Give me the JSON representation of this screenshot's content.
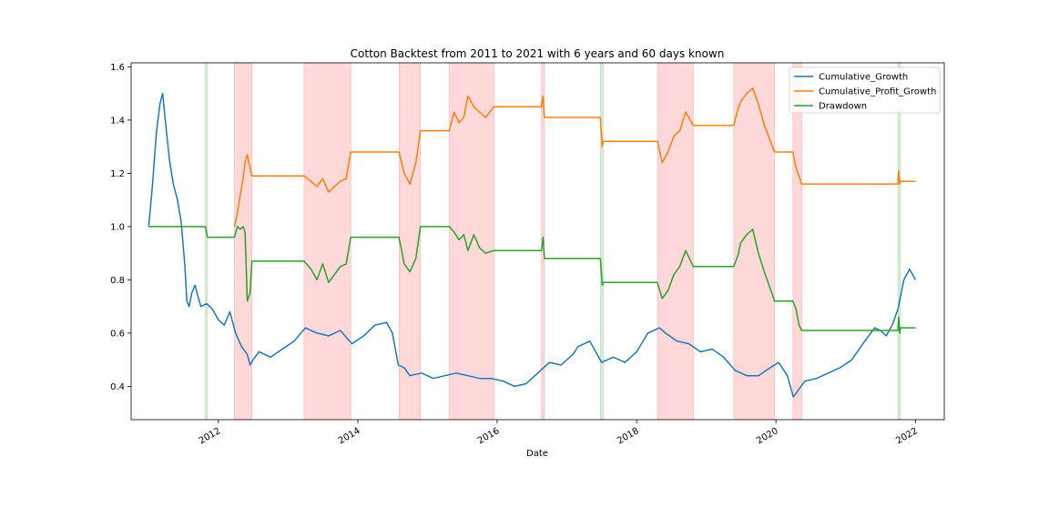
{
  "chart_data": {
    "type": "line",
    "title": "Cotton Backtest from 2011 to 2021 with 6 years and 60 days known",
    "xlabel": "Date",
    "ylabel": "",
    "xlim": [
      "2010-10-01",
      "2022-06-01"
    ],
    "ylim": [
      0.275,
      1.615
    ],
    "x_ticks": [
      {
        "label": "2012",
        "date": "2012-01-01"
      },
      {
        "label": "2014",
        "date": "2014-01-01"
      },
      {
        "label": "2016",
        "date": "2016-01-01"
      },
      {
        "label": "2018",
        "date": "2018-01-01"
      },
      {
        "label": "2020",
        "date": "2020-01-01"
      },
      {
        "label": "2022",
        "date": "2022-01-01"
      }
    ],
    "y_ticks": [
      0.4,
      0.6,
      0.8,
      1.0,
      1.2,
      1.4,
      1.6
    ],
    "y_tick_labels": [
      "0.4",
      "0.6",
      "0.8",
      "1.0",
      "1.2",
      "1.4",
      "1.6"
    ],
    "grid": false,
    "legend_position": "top-right",
    "shaded_regions": [
      {
        "start": "2011-10-25",
        "end": "2011-11-05",
        "color": "#2ca02c"
      },
      {
        "start": "2012-03-25",
        "end": "2012-06-25",
        "color": "#ff0000"
      },
      {
        "start": "2013-03-25",
        "end": "2013-11-25",
        "color": "#ff0000"
      },
      {
        "start": "2014-08-05",
        "end": "2014-11-25",
        "color": "#ff0000"
      },
      {
        "start": "2015-04-25",
        "end": "2015-12-15",
        "color": "#ff0000"
      },
      {
        "start": "2016-08-20",
        "end": "2016-09-05",
        "color": "#ff0000"
      },
      {
        "start": "2017-06-25",
        "end": "2017-07-10",
        "color": "#2ca02c"
      },
      {
        "start": "2018-04-20",
        "end": "2018-10-25",
        "color": "#ff0000"
      },
      {
        "start": "2019-05-25",
        "end": "2019-12-25",
        "color": "#ff0000"
      },
      {
        "start": "2020-03-30",
        "end": "2020-05-15",
        "color": "#ff0000"
      },
      {
        "start": "2021-10-01",
        "end": "2021-10-15",
        "color": "#2ca02c"
      }
    ],
    "series": [
      {
        "name": "Cumulative_Growth",
        "color": "#1f77b4",
        "x": [
          "2011-01-01",
          "2011-01-20",
          "2011-02-10",
          "2011-03-01",
          "2011-03-15",
          "2011-04-01",
          "2011-04-20",
          "2011-05-10",
          "2011-06-01",
          "2011-06-20",
          "2011-07-10",
          "2011-07-20",
          "2011-08-01",
          "2011-08-15",
          "2011-09-01",
          "2011-10-01",
          "2011-11-01",
          "2011-12-01",
          "2012-01-01",
          "2012-02-01",
          "2012-03-01",
          "2012-04-01",
          "2012-05-01",
          "2012-06-01",
          "2012-06-15",
          "2012-07-01",
          "2012-08-01",
          "2012-10-01",
          "2012-12-01",
          "2013-02-01",
          "2013-04-01",
          "2013-06-01",
          "2013-08-01",
          "2013-10-01",
          "2013-12-01",
          "2014-02-01",
          "2014-04-01",
          "2014-06-01",
          "2014-07-01",
          "2014-08-01",
          "2014-09-01",
          "2014-10-01",
          "2014-12-01",
          "2015-02-01",
          "2015-04-01",
          "2015-06-01",
          "2015-08-01",
          "2015-10-01",
          "2015-12-01",
          "2016-02-01",
          "2016-04-01",
          "2016-06-01",
          "2016-08-01",
          "2016-10-01",
          "2016-12-01",
          "2017-02-01",
          "2017-03-01",
          "2017-05-01",
          "2017-07-01",
          "2017-09-01",
          "2017-11-01",
          "2018-01-01",
          "2018-03-01",
          "2018-05-01",
          "2018-06-01",
          "2018-08-01",
          "2018-10-01",
          "2018-12-01",
          "2019-02-01",
          "2019-04-01",
          "2019-06-01",
          "2019-08-01",
          "2019-10-01",
          "2019-12-01",
          "2020-01-15",
          "2020-03-01",
          "2020-04-01",
          "2020-06-01",
          "2020-08-01",
          "2020-10-01",
          "2020-12-01",
          "2021-02-01",
          "2021-04-01",
          "2021-06-01",
          "2021-07-01",
          "2021-08-01",
          "2021-09-01",
          "2021-10-01",
          "2021-11-01",
          "2021-12-01",
          "2022-01-01"
        ],
        "values": [
          1.0,
          1.15,
          1.35,
          1.46,
          1.5,
          1.38,
          1.25,
          1.16,
          1.1,
          1.02,
          0.85,
          0.72,
          0.7,
          0.75,
          0.78,
          0.7,
          0.71,
          0.69,
          0.65,
          0.63,
          0.68,
          0.6,
          0.55,
          0.52,
          0.48,
          0.5,
          0.53,
          0.51,
          0.54,
          0.57,
          0.62,
          0.6,
          0.59,
          0.61,
          0.56,
          0.59,
          0.63,
          0.64,
          0.6,
          0.48,
          0.47,
          0.44,
          0.45,
          0.43,
          0.44,
          0.45,
          0.44,
          0.43,
          0.43,
          0.42,
          0.4,
          0.41,
          0.45,
          0.49,
          0.48,
          0.52,
          0.55,
          0.57,
          0.49,
          0.51,
          0.49,
          0.53,
          0.6,
          0.62,
          0.6,
          0.57,
          0.56,
          0.53,
          0.54,
          0.51,
          0.46,
          0.44,
          0.44,
          0.47,
          0.49,
          0.44,
          0.36,
          0.42,
          0.43,
          0.45,
          0.47,
          0.5,
          0.56,
          0.62,
          0.61,
          0.59,
          0.63,
          0.69,
          0.8,
          0.84,
          0.8
        ]
      },
      {
        "name": "Cumulative_Profit_Growth",
        "color": "#ff7f0e",
        "x": [
          "2012-03-25",
          "2012-04-10",
          "2012-04-25",
          "2012-05-10",
          "2012-05-20",
          "2012-06-01",
          "2012-06-15",
          "2012-06-25",
          "2013-03-25",
          "2013-05-01",
          "2013-06-01",
          "2013-07-01",
          "2013-08-01",
          "2013-09-01",
          "2013-10-01",
          "2013-11-01",
          "2013-11-25",
          "2014-08-05",
          "2014-09-01",
          "2014-10-01",
          "2014-11-01",
          "2014-11-25",
          "2015-04-25",
          "2015-05-20",
          "2015-06-15",
          "2015-07-10",
          "2015-08-01",
          "2015-09-01",
          "2015-10-01",
          "2015-11-01",
          "2015-12-15",
          "2016-08-20",
          "2016-08-28",
          "2016-09-05",
          "2017-06-25",
          "2017-07-05",
          "2017-07-10",
          "2018-04-20",
          "2018-05-15",
          "2018-06-15",
          "2018-07-15",
          "2018-08-15",
          "2018-09-15",
          "2018-10-25",
          "2019-05-25",
          "2019-06-15",
          "2019-07-01",
          "2019-08-01",
          "2019-09-01",
          "2019-10-01",
          "2019-11-01",
          "2019-12-25",
          "2020-03-30",
          "2020-04-15",
          "2020-05-01",
          "2020-05-15",
          "2021-10-01",
          "2021-10-05",
          "2021-10-10",
          "2021-10-15",
          "2022-01-01"
        ],
        "values": [
          1.0,
          1.05,
          1.12,
          1.18,
          1.24,
          1.27,
          1.22,
          1.19,
          1.19,
          1.17,
          1.15,
          1.18,
          1.13,
          1.15,
          1.17,
          1.18,
          1.28,
          1.28,
          1.2,
          1.16,
          1.24,
          1.36,
          1.36,
          1.43,
          1.39,
          1.41,
          1.49,
          1.45,
          1.43,
          1.41,
          1.45,
          1.45,
          1.49,
          1.41,
          1.41,
          1.3,
          1.32,
          1.32,
          1.24,
          1.28,
          1.34,
          1.36,
          1.43,
          1.38,
          1.38,
          1.44,
          1.47,
          1.5,
          1.52,
          1.46,
          1.38,
          1.28,
          1.28,
          1.22,
          1.19,
          1.16,
          1.16,
          1.21,
          1.16,
          1.17,
          1.17
        ]
      },
      {
        "name": "Drawdown",
        "color": "#2ca02c",
        "x": [
          "2011-01-01",
          "2011-10-25",
          "2011-11-05",
          "2012-03-25",
          "2012-04-10",
          "2012-04-25",
          "2012-05-10",
          "2012-05-20",
          "2012-06-01",
          "2012-06-15",
          "2012-06-25",
          "2013-03-25",
          "2013-05-01",
          "2013-06-01",
          "2013-07-01",
          "2013-08-01",
          "2013-09-01",
          "2013-10-01",
          "2013-11-01",
          "2013-11-25",
          "2014-08-05",
          "2014-09-01",
          "2014-10-01",
          "2014-11-01",
          "2014-11-25",
          "2015-04-25",
          "2015-05-20",
          "2015-06-15",
          "2015-07-10",
          "2015-08-01",
          "2015-09-01",
          "2015-10-01",
          "2015-11-01",
          "2015-12-15",
          "2016-08-20",
          "2016-08-28",
          "2016-09-05",
          "2017-06-25",
          "2017-07-05",
          "2017-07-10",
          "2018-04-20",
          "2018-05-15",
          "2018-06-15",
          "2018-07-15",
          "2018-08-15",
          "2018-09-15",
          "2018-10-25",
          "2019-05-25",
          "2019-06-15",
          "2019-07-01",
          "2019-08-01",
          "2019-09-01",
          "2019-10-01",
          "2019-11-01",
          "2019-12-25",
          "2020-03-30",
          "2020-04-15",
          "2020-05-01",
          "2020-05-15",
          "2021-10-01",
          "2021-10-05",
          "2021-10-10",
          "2021-10-15",
          "2022-01-01"
        ],
        "values": [
          1.0,
          1.0,
          0.96,
          0.96,
          1.0,
          0.99,
          1.0,
          0.98,
          0.72,
          0.75,
          0.87,
          0.87,
          0.84,
          0.8,
          0.86,
          0.79,
          0.82,
          0.85,
          0.86,
          0.96,
          0.96,
          0.86,
          0.83,
          0.88,
          1.0,
          1.0,
          0.98,
          0.95,
          0.97,
          0.91,
          0.97,
          0.92,
          0.9,
          0.91,
          0.91,
          0.96,
          0.88,
          0.88,
          0.78,
          0.79,
          0.79,
          0.73,
          0.76,
          0.82,
          0.85,
          0.91,
          0.85,
          0.85,
          0.89,
          0.94,
          0.97,
          0.99,
          0.9,
          0.83,
          0.72,
          0.72,
          0.69,
          0.63,
          0.61,
          0.61,
          0.66,
          0.6,
          0.62,
          0.62
        ]
      }
    ]
  }
}
